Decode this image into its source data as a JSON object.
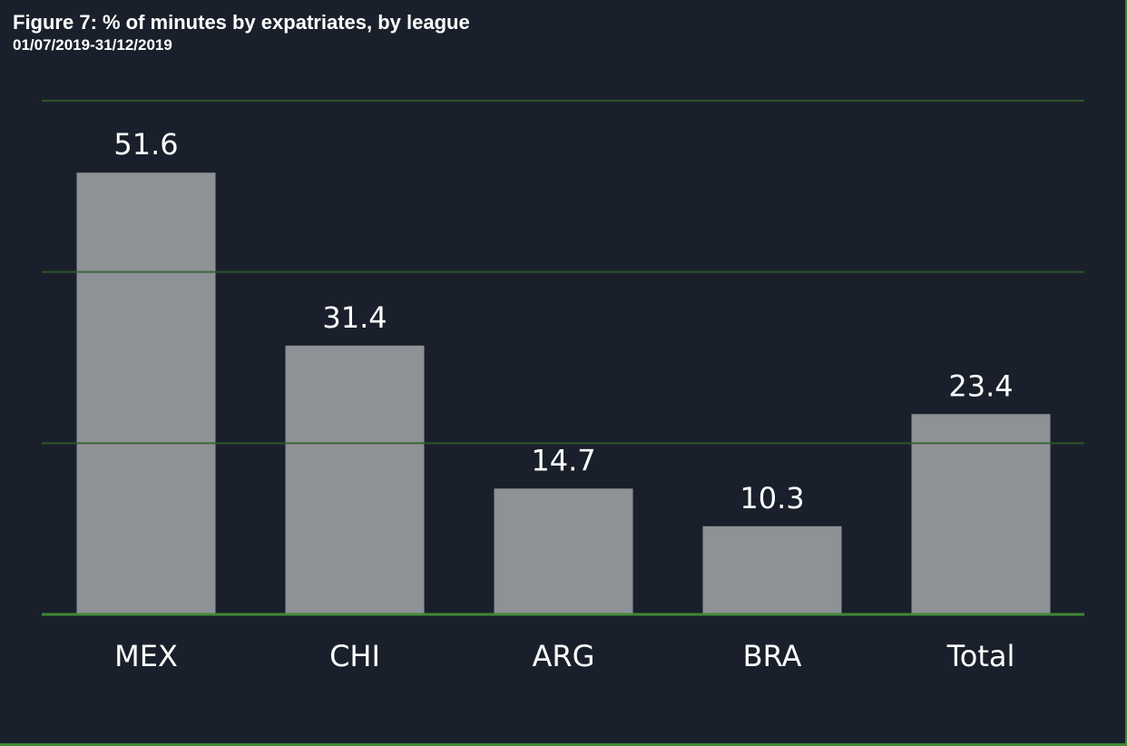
{
  "title": "Figure 7: % of minutes by expatriates, by league",
  "subtitle": "01/07/2019-31/12/2019",
  "colors": {
    "background": "#1a202b",
    "bar": "#8e9196",
    "gridline": "#2f5e2a",
    "baseline": "#3f8a34",
    "text": "#ffffff"
  },
  "chart_data": {
    "type": "bar",
    "title": "Figure 7: % of minutes by expatriates, by league",
    "subtitle": "01/07/2019-31/12/2019",
    "categories": [
      "MEX",
      "CHI",
      "ARG",
      "BRA",
      "Total"
    ],
    "values": [
      51.6,
      31.4,
      14.7,
      10.3,
      23.4
    ],
    "value_labels": [
      "51.6",
      "31.4",
      "14.7",
      "10.3",
      "23.4"
    ],
    "xlabel": "",
    "ylabel": "",
    "ylim": [
      0,
      60
    ],
    "gridlines": [
      0,
      20,
      40,
      60
    ],
    "grid": true,
    "legend": "none"
  }
}
